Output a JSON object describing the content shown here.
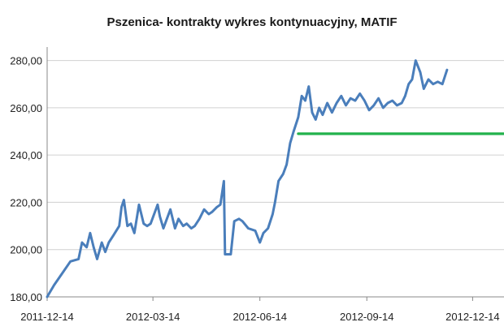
{
  "chart_data": {
    "type": "line",
    "title": "Pszenica- kontrakty wykres kontynuacyjny, MATIF",
    "xlabel": "",
    "ylabel": "",
    "x_tick_labels": [
      "2011-12-14",
      "2012-03-14",
      "2012-06-14",
      "2012-09-14",
      "2012-12-14"
    ],
    "y_tick_labels": [
      "180,00",
      "200,00",
      "220,00",
      "240,00",
      "260,00",
      "280,00"
    ],
    "ylim": [
      180,
      285
    ],
    "xlim": [
      "2011-12-14",
      "2013-01-10"
    ],
    "grid": "horizontal",
    "legend": "none",
    "series": [
      {
        "color": "#4a7ebb",
        "points": [
          [
            "2011-12-14",
            180
          ],
          [
            "2011-12-20",
            185
          ],
          [
            "2011-12-27",
            190
          ],
          [
            "2012-01-03",
            195
          ],
          [
            "2012-01-10",
            196
          ],
          [
            "2012-01-13",
            203
          ],
          [
            "2012-01-17",
            201
          ],
          [
            "2012-01-20",
            207
          ],
          [
            "2012-01-23",
            201
          ],
          [
            "2012-01-26",
            196
          ],
          [
            "2012-01-30",
            203
          ],
          [
            "2012-02-02",
            199
          ],
          [
            "2012-02-05",
            203
          ],
          [
            "2012-02-09",
            206
          ],
          [
            "2012-02-14",
            210
          ],
          [
            "2012-02-16",
            218
          ],
          [
            "2012-02-18",
            221
          ],
          [
            "2012-02-21",
            210
          ],
          [
            "2012-02-24",
            211
          ],
          [
            "2012-02-27",
            207
          ],
          [
            "2012-03-02",
            219
          ],
          [
            "2012-03-06",
            211
          ],
          [
            "2012-03-09",
            210
          ],
          [
            "2012-03-12",
            211
          ],
          [
            "2012-03-15",
            215
          ],
          [
            "2012-03-18",
            219
          ],
          [
            "2012-03-20",
            214
          ],
          [
            "2012-03-23",
            209
          ],
          [
            "2012-03-26",
            213
          ],
          [
            "2012-03-29",
            217
          ],
          [
            "2012-04-02",
            209
          ],
          [
            "2012-04-05",
            213
          ],
          [
            "2012-04-09",
            210
          ],
          [
            "2012-04-12",
            211
          ],
          [
            "2012-04-16",
            209
          ],
          [
            "2012-04-19",
            210
          ],
          [
            "2012-04-23",
            213
          ],
          [
            "2012-04-27",
            217
          ],
          [
            "2012-05-01",
            215
          ],
          [
            "2012-05-04",
            216
          ],
          [
            "2012-05-08",
            218
          ],
          [
            "2012-05-11",
            219
          ],
          [
            "2012-05-14",
            229
          ],
          [
            "2012-05-15",
            198
          ],
          [
            "2012-05-20",
            198
          ],
          [
            "2012-05-23",
            212
          ],
          [
            "2012-05-27",
            213
          ],
          [
            "2012-05-30",
            212
          ],
          [
            "2012-06-04",
            209
          ],
          [
            "2012-06-10",
            208
          ],
          [
            "2012-06-14",
            203
          ],
          [
            "2012-06-17",
            207
          ],
          [
            "2012-06-21",
            209
          ],
          [
            "2012-06-25",
            215
          ],
          [
            "2012-06-27",
            220
          ],
          [
            "2012-06-30",
            229
          ],
          [
            "2012-07-04",
            232
          ],
          [
            "2012-07-07",
            236
          ],
          [
            "2012-07-10",
            245
          ],
          [
            "2012-07-13",
            250
          ],
          [
            "2012-07-17",
            256
          ],
          [
            "2012-07-20",
            265
          ],
          [
            "2012-07-23",
            263
          ],
          [
            "2012-07-26",
            269
          ],
          [
            "2012-07-29",
            258
          ],
          [
            "2012-08-01",
            255
          ],
          [
            "2012-08-04",
            260
          ],
          [
            "2012-08-07",
            257
          ],
          [
            "2012-08-11",
            262
          ],
          [
            "2012-08-15",
            258
          ],
          [
            "2012-08-19",
            262
          ],
          [
            "2012-08-23",
            265
          ],
          [
            "2012-08-27",
            261
          ],
          [
            "2012-08-31",
            264
          ],
          [
            "2012-09-04",
            263
          ],
          [
            "2012-09-08",
            266
          ],
          [
            "2012-09-12",
            263
          ],
          [
            "2012-09-16",
            259
          ],
          [
            "2012-09-20",
            261
          ],
          [
            "2012-09-24",
            264
          ],
          [
            "2012-09-28",
            260
          ],
          [
            "2012-10-02",
            262
          ],
          [
            "2012-10-06",
            263
          ],
          [
            "2012-10-10",
            261
          ],
          [
            "2012-10-14",
            262
          ],
          [
            "2012-10-17",
            265
          ],
          [
            "2012-10-20",
            270
          ],
          [
            "2012-10-23",
            272
          ],
          [
            "2012-10-26",
            280
          ],
          [
            "2012-10-30",
            275
          ],
          [
            "2012-11-02",
            268
          ],
          [
            "2012-11-06",
            272
          ],
          [
            "2012-11-10",
            270
          ],
          [
            "2012-11-14",
            271
          ],
          [
            "2012-11-18",
            270
          ],
          [
            "2012-11-22",
            276
          ]
        ]
      },
      {
        "color": "#22b24c",
        "points": [
          [
            "2012-07-17",
            249
          ],
          [
            "2013-01-10",
            249
          ]
        ]
      }
    ]
  }
}
